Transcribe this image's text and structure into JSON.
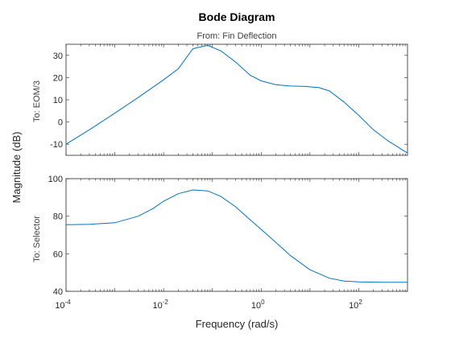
{
  "chart_data": {
    "type": "line",
    "title": "Bode Diagram",
    "subtitle": "From: Fin Deflection",
    "xlabel": "Frequency (rad/s)",
    "ylabel": "Magnitude (dB)",
    "x_scale": "log",
    "xlim": [
      0.0001,
      1000
    ],
    "x_ticks": [
      {
        "base": "10",
        "exp": "-4",
        "value": 0.0001
      },
      {
        "base": "10",
        "exp": "-2",
        "value": 0.01
      },
      {
        "base": "10",
        "exp": "0",
        "value": 1
      },
      {
        "base": "10",
        "exp": "2",
        "value": 100
      }
    ],
    "line_color": "#0072bd",
    "subplots": [
      {
        "row_label": "To: EOM/3",
        "ylim": [
          -15,
          35
        ],
        "y_ticks": [
          -10,
          0,
          10,
          20,
          30
        ],
        "x": [
          0.0001,
          0.0003,
          0.001,
          0.003,
          0.01,
          0.02,
          0.04,
          0.08,
          0.15,
          0.3,
          0.6,
          1,
          2,
          4,
          8,
          15,
          25,
          50,
          100,
          200,
          400,
          1000
        ],
        "y": [
          -10,
          -3.5,
          4,
          11,
          19,
          24,
          33,
          34.5,
          32,
          27,
          21,
          18.5,
          16.8,
          16.2,
          16,
          15.5,
          14,
          9,
          3,
          -3.5,
          -8.5,
          -14
        ]
      },
      {
        "row_label": "To: Selector",
        "ylim": [
          40,
          100
        ],
        "y_ticks": [
          40,
          60,
          80,
          100
        ],
        "x": [
          0.0001,
          0.0003,
          0.001,
          0.003,
          0.006,
          0.01,
          0.02,
          0.04,
          0.08,
          0.15,
          0.3,
          0.6,
          1,
          2,
          4,
          10,
          25,
          50,
          100,
          300,
          1000
        ],
        "y": [
          75.5,
          75.7,
          76.5,
          80,
          84,
          88,
          92,
          94,
          93.5,
          90.5,
          85,
          78,
          73,
          66,
          59,
          51.5,
          47,
          45.5,
          45,
          44.8,
          44.8
        ]
      }
    ]
  }
}
